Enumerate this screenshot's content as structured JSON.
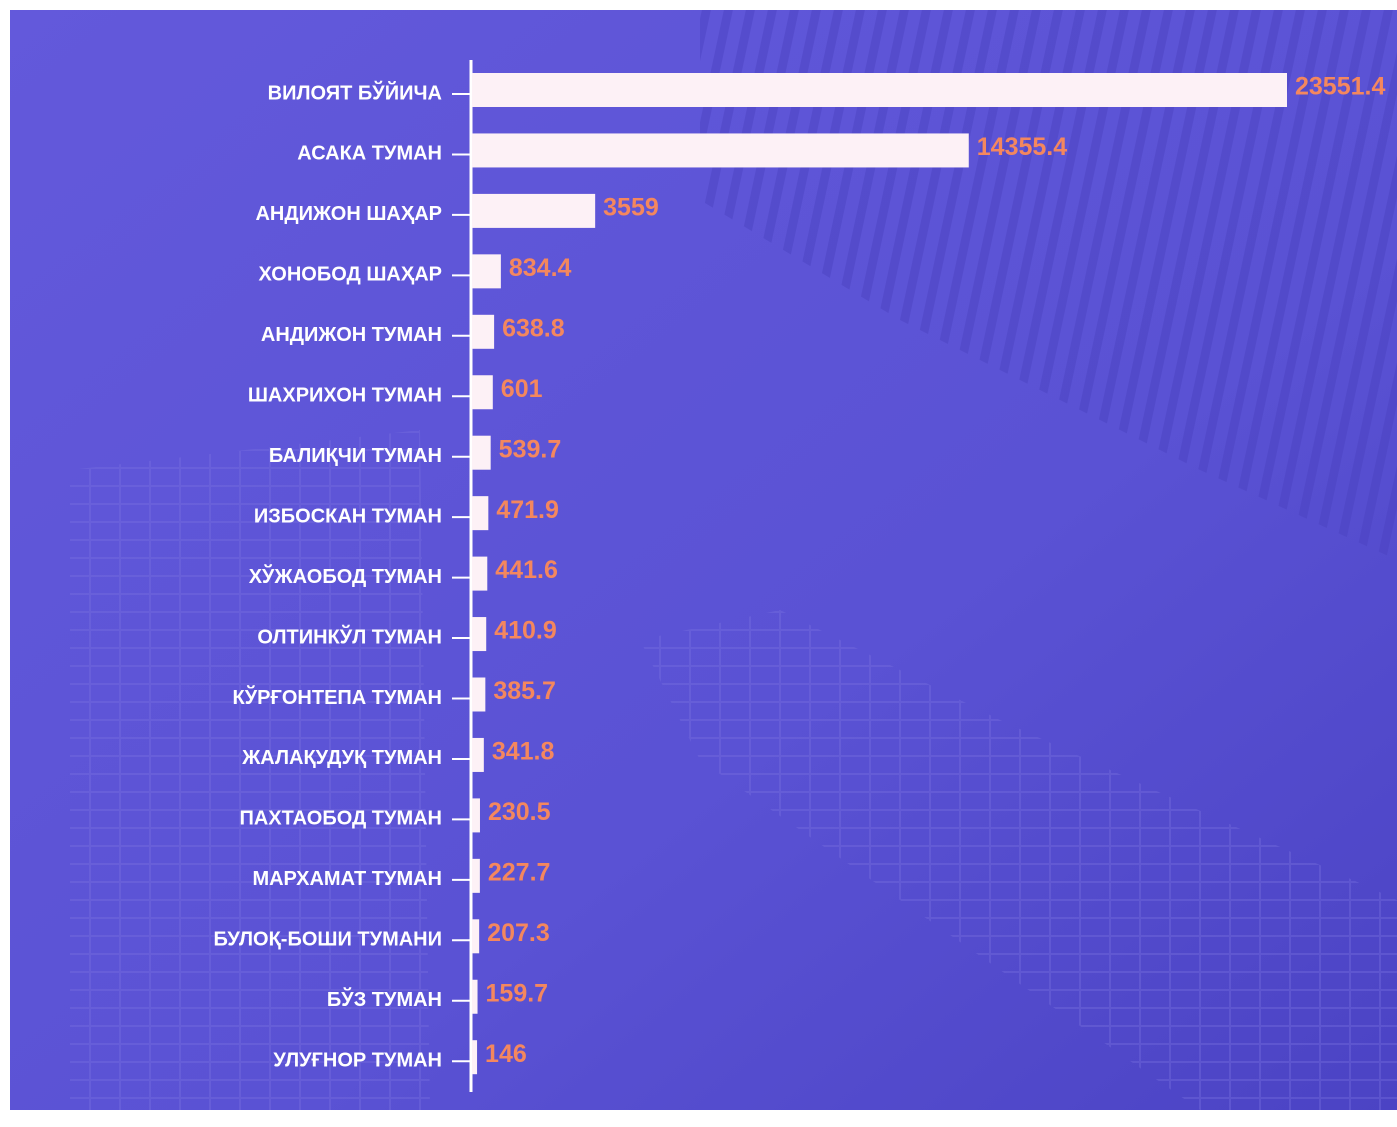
{
  "chart_data": {
    "type": "barh",
    "categories": [
      "ВИЛОЯТ БЎЙИЧА",
      "АСАКА ТУМАН",
      "АНДИЖОН ШАҲАР",
      "ХОНОБОД ШАҲАР",
      "АНДИЖОН ТУМАН",
      "ШАХРИХОН ТУМАН",
      "БАЛИҚЧИ ТУМАН",
      "ИЗБОСКАН ТУМАН",
      "ХЎЖАОБОД ТУМАН",
      "ОЛТИНКЎЛ ТУМАН",
      "КЎРҒОНТЕПА ТУМАН",
      "ЖАЛАҚУДУҚ ТУМАН",
      "ПАХТАОБОД ТУМАН",
      "МАРХАМАТ ТУМАН",
      "БУЛОҚ-БОШИ ТУМАНИ",
      "БЎЗ ТУМАН",
      "УЛУҒНОР ТУМАН"
    ],
    "values": [
      23551.4,
      14355.4,
      3559,
      834.4,
      638.8,
      601,
      539.7,
      471.9,
      441.6,
      410.9,
      385.7,
      341.8,
      230.5,
      227.7,
      207.3,
      159.7,
      146
    ],
    "color": "#fdf1f6",
    "label_color": "#f4875e"
  }
}
